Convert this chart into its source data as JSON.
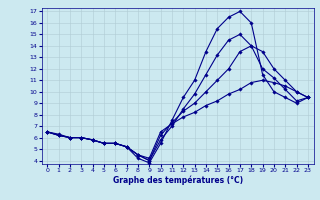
{
  "xlabel": "Graphe des températures (°C)",
  "xlim": [
    -0.5,
    23.5
  ],
  "ylim": [
    3.7,
    17.3
  ],
  "yticks": [
    4,
    5,
    6,
    7,
    8,
    9,
    10,
    11,
    12,
    13,
    14,
    15,
    16,
    17
  ],
  "xticks": [
    0,
    1,
    2,
    3,
    4,
    5,
    6,
    7,
    8,
    9,
    10,
    11,
    12,
    13,
    14,
    15,
    16,
    17,
    18,
    19,
    20,
    21,
    22,
    23
  ],
  "background_color": "#cce9f0",
  "line_color": "#00008b",
  "grid_color": "#b0ccd4",
  "lines": [
    {
      "x": [
        0,
        1,
        2,
        3,
        4,
        5,
        6,
        7,
        8,
        9,
        10,
        11,
        12,
        13,
        14,
        15,
        16,
        17,
        18,
        19,
        20,
        21,
        22,
        23
      ],
      "y": [
        6.5,
        6.3,
        6.0,
        6.0,
        5.8,
        5.5,
        5.5,
        5.2,
        4.2,
        3.8,
        5.5,
        7.5,
        9.5,
        11.0,
        13.5,
        15.5,
        16.5,
        17.0,
        16.0,
        11.5,
        10.0,
        9.5,
        9.0,
        9.5
      ]
    },
    {
      "x": [
        0,
        1,
        2,
        3,
        4,
        5,
        6,
        7,
        8,
        9,
        10,
        11,
        12,
        13,
        14,
        15,
        16,
        17,
        18,
        19,
        20,
        21,
        22,
        23
      ],
      "y": [
        6.5,
        6.2,
        6.0,
        6.0,
        5.8,
        5.5,
        5.5,
        5.2,
        4.5,
        4.0,
        5.8,
        7.0,
        8.5,
        9.8,
        11.5,
        13.2,
        14.5,
        15.0,
        14.0,
        12.0,
        11.2,
        10.2,
        9.2,
        9.5
      ]
    },
    {
      "x": [
        0,
        1,
        2,
        3,
        4,
        5,
        6,
        7,
        8,
        9,
        10,
        11,
        12,
        13,
        14,
        15,
        16,
        17,
        18,
        19,
        20,
        21,
        22,
        23
      ],
      "y": [
        6.5,
        6.2,
        6.0,
        6.0,
        5.8,
        5.5,
        5.5,
        5.2,
        4.5,
        4.0,
        6.2,
        7.3,
        8.3,
        9.0,
        10.0,
        11.0,
        12.0,
        13.5,
        14.0,
        13.5,
        12.0,
        11.0,
        10.0,
        9.5
      ]
    },
    {
      "x": [
        0,
        1,
        2,
        3,
        4,
        5,
        6,
        7,
        8,
        9,
        10,
        11,
        12,
        13,
        14,
        15,
        16,
        17,
        18,
        19,
        20,
        21,
        22,
        23
      ],
      "y": [
        6.5,
        6.2,
        6.0,
        6.0,
        5.8,
        5.5,
        5.5,
        5.2,
        4.5,
        4.2,
        6.5,
        7.2,
        7.8,
        8.2,
        8.8,
        9.2,
        9.8,
        10.2,
        10.8,
        11.0,
        10.8,
        10.5,
        10.0,
        9.5
      ]
    }
  ]
}
